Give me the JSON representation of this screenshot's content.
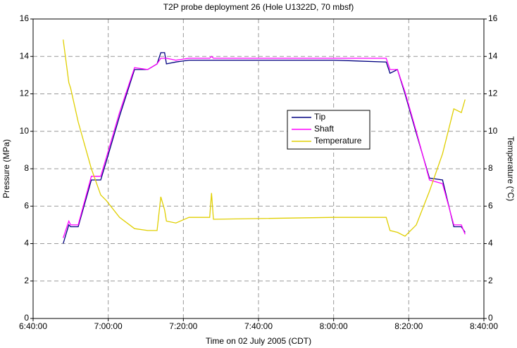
{
  "chart_data": {
    "type": "line",
    "title": "T2P probe deployment 26 (Hole U1322D, 70 mbsf)",
    "x_label": "Time on 02 July 2005 (CDT)",
    "y_label": "Pressure (MPa)",
    "y2_label": "Temperature (°C)",
    "x": [
      "6:48:00",
      "6:49:30",
      "6:50:00",
      "6:52:00",
      "6:55:30",
      "6:58:00",
      "6:59:30",
      "7:03:00",
      "7:07:00",
      "7:10:30",
      "7:13:00",
      "7:14:00",
      "7:15:00",
      "7:15:30",
      "7:18:00",
      "7:21:30",
      "7:27:00",
      "7:27:30",
      "7:28:00",
      "8:00:00",
      "8:14:00",
      "8:15:00",
      "8:17:00",
      "8:19:00",
      "8:22:00",
      "8:25:30",
      "8:29:00",
      "8:32:00",
      "8:34:00",
      "8:35:00"
    ],
    "series": [
      {
        "name": "Tip",
        "color": "#000080",
        "values": [
          4.0,
          5.0,
          4.9,
          4.9,
          7.4,
          7.4,
          8.4,
          10.8,
          13.3,
          13.3,
          13.6,
          14.2,
          14.2,
          13.6,
          13.7,
          13.8,
          13.8,
          13.8,
          13.8,
          13.8,
          13.7,
          13.1,
          13.3,
          12.0,
          9.9,
          7.5,
          7.4,
          4.9,
          4.9,
          4.6
        ]
      },
      {
        "name": "Shaft",
        "color": "#ff00ff",
        "values": [
          4.3,
          5.2,
          5.0,
          5.0,
          7.6,
          7.6,
          8.6,
          11.0,
          13.4,
          13.3,
          13.6,
          13.9,
          13.9,
          13.9,
          13.8,
          13.9,
          13.9,
          14.0,
          13.9,
          13.9,
          13.9,
          13.3,
          13.3,
          12.1,
          10.0,
          7.4,
          7.2,
          5.0,
          5.0,
          4.5
        ]
      },
      {
        "name": "Temperature",
        "color": "#e0cf00",
        "axis": "y2",
        "values": [
          14.9,
          12.6,
          12.3,
          10.5,
          8.0,
          6.6,
          6.3,
          5.4,
          4.8,
          4.7,
          4.7,
          6.5,
          5.8,
          5.2,
          5.1,
          5.4,
          5.4,
          6.7,
          5.3,
          5.4,
          5.4,
          4.7,
          4.6,
          4.4,
          5.0,
          6.8,
          8.8,
          11.2,
          11.0,
          11.7
        ]
      }
    ],
    "xlim": [
      "6:40:00",
      "8:40:00"
    ],
    "xticks": [
      "6:40:00",
      "7:00:00",
      "7:20:00",
      "7:40:00",
      "8:00:00",
      "8:20:00",
      "8:40:00"
    ],
    "ylim": [
      0,
      16
    ],
    "yticks": [
      0,
      2,
      4,
      6,
      8,
      10,
      12,
      14,
      16
    ],
    "y2lim": [
      0,
      16
    ],
    "y2ticks": [
      0,
      2,
      4,
      6,
      8,
      10,
      12,
      14,
      16
    ],
    "grid": true,
    "legend": "center"
  }
}
